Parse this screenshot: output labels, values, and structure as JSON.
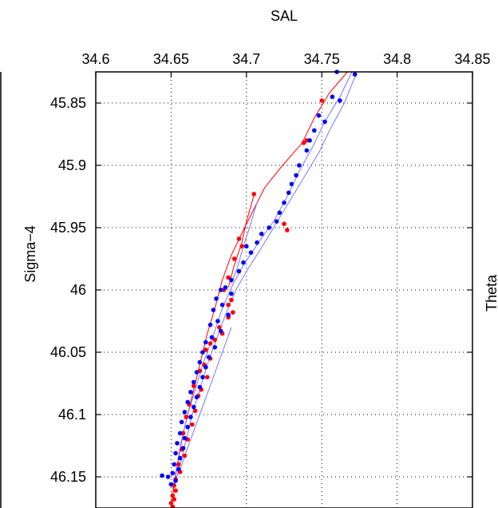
{
  "chart_data": {
    "type": "scatter",
    "xlabel": "SAL",
    "ylabel": "Sigma−4",
    "right_label": "Theta",
    "x_axis_position": "top",
    "y_reversed": true,
    "grid": true,
    "xlim": [
      34.6,
      34.85
    ],
    "ylim": [
      45.825,
      46.175
    ],
    "xticks": [
      34.6,
      34.65,
      34.7,
      34.75,
      34.8,
      34.85
    ],
    "xtick_labels": [
      "34.6",
      "34.65",
      "34.7",
      "34.75",
      "34.8",
      "34.85"
    ],
    "yticks": [
      45.85,
      45.9,
      45.95,
      46.0,
      46.05,
      46.1,
      46.15
    ],
    "ytick_labels": [
      "45.85",
      "45.9",
      "45.95",
      "46",
      "46.05",
      "46.1",
      "46.15"
    ],
    "series": [
      {
        "color": "#ff0000",
        "points": [
          [
            34.75,
            45.848
          ],
          [
            34.74,
            45.88
          ],
          [
            34.738,
            45.882
          ],
          [
            34.705,
            45.923
          ],
          [
            34.725,
            45.947
          ],
          [
            34.727,
            45.952
          ],
          [
            34.695,
            45.959
          ],
          [
            34.697,
            45.965
          ],
          [
            34.692,
            45.975
          ],
          [
            34.688,
            45.99
          ],
          [
            34.685,
            46.0
          ],
          [
            34.69,
            46.008
          ],
          [
            34.688,
            46.012
          ],
          [
            34.691,
            46.018
          ],
          [
            34.688,
            46.022
          ],
          [
            34.682,
            46.03
          ],
          [
            34.684,
            46.035
          ],
          [
            34.679,
            46.04
          ],
          [
            34.676,
            46.043
          ],
          [
            34.673,
            46.048
          ],
          [
            34.676,
            46.055
          ],
          [
            34.672,
            46.06
          ],
          [
            34.669,
            46.065
          ],
          [
            34.674,
            46.07
          ],
          [
            34.665,
            46.077
          ],
          [
            34.67,
            46.08
          ],
          [
            34.668,
            46.085
          ],
          [
            34.662,
            46.092
          ],
          [
            34.666,
            46.097
          ],
          [
            34.66,
            46.102
          ],
          [
            34.664,
            46.108
          ],
          [
            34.658,
            46.115
          ],
          [
            34.661,
            46.12
          ],
          [
            34.657,
            46.128
          ],
          [
            34.659,
            46.133
          ],
          [
            34.655,
            46.14
          ],
          [
            34.656,
            46.146
          ],
          [
            34.653,
            46.152
          ],
          [
            34.652,
            46.157
          ],
          [
            34.653,
            46.161
          ],
          [
            34.651,
            46.165
          ],
          [
            34.652,
            46.168
          ],
          [
            34.65,
            46.171
          ],
          [
            34.651,
            46.174
          ]
        ]
      },
      {
        "color": "#0000ff",
        "points": [
          [
            34.76,
            45.825
          ],
          [
            34.772,
            45.827
          ],
          [
            34.757,
            45.845
          ],
          [
            34.762,
            45.848
          ],
          [
            34.748,
            45.86
          ],
          [
            34.752,
            45.865
          ],
          [
            34.745,
            45.872
          ],
          [
            34.742,
            45.88
          ],
          [
            34.74,
            45.888
          ],
          [
            34.735,
            45.9
          ],
          [
            34.733,
            45.908
          ],
          [
            34.73,
            45.915
          ],
          [
            34.728,
            45.922
          ],
          [
            34.725,
            45.93
          ],
          [
            34.722,
            45.938
          ],
          [
            34.72,
            45.945
          ],
          [
            34.715,
            45.95
          ],
          [
            34.71,
            45.955
          ],
          [
            34.707,
            45.962
          ],
          [
            34.7,
            45.965
          ],
          [
            34.703,
            45.97
          ],
          [
            34.698,
            45.978
          ],
          [
            34.695,
            45.985
          ],
          [
            34.69,
            45.992
          ],
          [
            34.686,
            45.998
          ],
          [
            34.683,
            46.0
          ],
          [
            34.69,
            46.003
          ],
          [
            34.68,
            46.007
          ],
          [
            34.684,
            46.012
          ],
          [
            34.678,
            46.016
          ],
          [
            34.688,
            46.02
          ],
          [
            34.681,
            46.025
          ],
          [
            34.676,
            46.028
          ],
          [
            34.683,
            46.033
          ],
          [
            34.677,
            46.038
          ],
          [
            34.673,
            46.042
          ],
          [
            34.679,
            46.046
          ],
          [
            34.671,
            46.05
          ],
          [
            34.675,
            46.054
          ],
          [
            34.669,
            46.058
          ],
          [
            34.673,
            46.062
          ],
          [
            34.667,
            46.066
          ],
          [
            34.671,
            46.07
          ],
          [
            34.665,
            46.074
          ],
          [
            34.669,
            46.078
          ],
          [
            34.663,
            46.082
          ],
          [
            34.667,
            46.086
          ],
          [
            34.661,
            46.09
          ],
          [
            34.665,
            46.094
          ],
          [
            34.659,
            46.098
          ],
          [
            34.663,
            46.102
          ],
          [
            34.657,
            46.106
          ],
          [
            34.661,
            46.11
          ],
          [
            34.656,
            46.115
          ],
          [
            34.659,
            46.119
          ],
          [
            34.654,
            46.123
          ],
          [
            34.658,
            46.127
          ],
          [
            34.653,
            46.131
          ],
          [
            34.656,
            46.135
          ],
          [
            34.652,
            46.14
          ],
          [
            34.655,
            46.144
          ],
          [
            34.651,
            46.147
          ],
          [
            34.644,
            46.149
          ],
          [
            34.648,
            46.15
          ],
          [
            34.653,
            46.153
          ],
          [
            34.65,
            46.156
          ]
        ]
      }
    ],
    "lines": [
      {
        "color": "#ff0000",
        "points": [
          [
            34.767,
            45.825
          ],
          [
            34.755,
            45.842
          ],
          [
            34.745,
            45.862
          ],
          [
            34.737,
            45.882
          ],
          [
            34.724,
            45.9
          ],
          [
            34.712,
            45.918
          ],
          [
            34.705,
            45.935
          ],
          [
            34.698,
            45.952
          ],
          [
            34.69,
            45.972
          ],
          [
            34.684,
            45.992
          ],
          [
            34.679,
            46.015
          ],
          [
            34.674,
            46.035
          ],
          [
            34.67,
            46.055
          ],
          [
            34.666,
            46.075
          ],
          [
            34.662,
            46.095
          ],
          [
            34.658,
            46.115
          ],
          [
            34.655,
            46.135
          ],
          [
            34.652,
            46.155
          ],
          [
            34.65,
            46.175
          ]
        ]
      },
      {
        "color": "#ff0000",
        "points": [
          [
            34.705,
            45.924
          ],
          [
            34.7,
            45.945
          ],
          [
            34.697,
            45.962
          ],
          [
            34.692,
            45.98
          ],
          [
            34.688,
            45.998
          ]
        ]
      },
      {
        "color": "#7777ff",
        "points": [
          [
            34.77,
            45.825
          ],
          [
            34.762,
            45.845
          ],
          [
            34.752,
            45.865
          ],
          [
            34.744,
            45.885
          ],
          [
            34.735,
            45.905
          ],
          [
            34.727,
            45.925
          ],
          [
            34.718,
            45.945
          ],
          [
            34.708,
            45.962
          ],
          [
            34.698,
            45.98
          ],
          [
            34.69,
            45.998
          ],
          [
            34.683,
            46.018
          ],
          [
            34.677,
            46.04
          ],
          [
            34.671,
            46.06
          ],
          [
            34.666,
            46.08
          ],
          [
            34.661,
            46.1
          ],
          [
            34.657,
            46.12
          ],
          [
            34.654,
            46.14
          ],
          [
            34.651,
            46.16
          ]
        ]
      },
      {
        "color": "#7777ff",
        "points": [
          [
            34.773,
            45.826
          ],
          [
            34.765,
            45.85
          ],
          [
            34.756,
            45.87
          ],
          [
            34.748,
            45.89
          ],
          [
            34.738,
            45.91
          ],
          [
            34.728,
            45.93
          ],
          [
            34.718,
            45.95
          ],
          [
            34.708,
            45.97
          ],
          [
            34.7,
            45.985
          ],
          [
            34.693,
            46.0
          ],
          [
            34.686,
            46.02
          ],
          [
            34.68,
            46.04
          ],
          [
            34.674,
            46.06
          ],
          [
            34.669,
            46.08
          ],
          [
            34.664,
            46.1
          ],
          [
            34.66,
            46.12
          ],
          [
            34.656,
            46.14
          ],
          [
            34.652,
            46.158
          ]
        ]
      },
      {
        "color": "#7777ff",
        "points": [
          [
            34.707,
            45.93
          ],
          [
            34.702,
            45.95
          ],
          [
            34.698,
            45.965
          ],
          [
            34.694,
            45.982
          ],
          [
            34.69,
            45.995
          ]
        ]
      },
      {
        "color": "#7777ff",
        "points": [
          [
            34.69,
            46.03
          ],
          [
            34.684,
            46.05
          ],
          [
            34.678,
            46.07
          ],
          [
            34.672,
            46.09
          ],
          [
            34.666,
            46.11
          ],
          [
            34.66,
            46.13
          ],
          [
            34.655,
            46.148
          ]
        ]
      }
    ]
  }
}
